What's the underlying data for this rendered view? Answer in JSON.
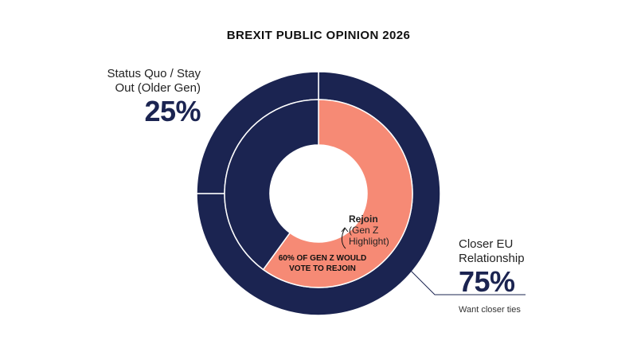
{
  "colors": {
    "navy": "#1b2451",
    "coral": "#f68a75",
    "white": "#ffffff",
    "leader": "#1b2451"
  },
  "chart_data": {
    "type": "pie",
    "variant": "nested-donut",
    "title": "BREXIT PUBLIC OPINION 2026",
    "outer_ring": {
      "slices": [
        {
          "label": "Status Quo / Stay Out (Older Gen)",
          "value": 25,
          "display": "25%"
        },
        {
          "label": "Closer EU Relationship",
          "value": 75,
          "display": "75%",
          "sublabel": "Want closer ties"
        }
      ]
    },
    "inner_ring": {
      "slices": [
        {
          "label": "Rejoin",
          "detail": "(Gen Z Highlight)",
          "value": 60
        },
        {
          "value": 40
        }
      ]
    },
    "annotation": "60% OF GEN Z WOULD VOTE TO REJOIN"
  }
}
